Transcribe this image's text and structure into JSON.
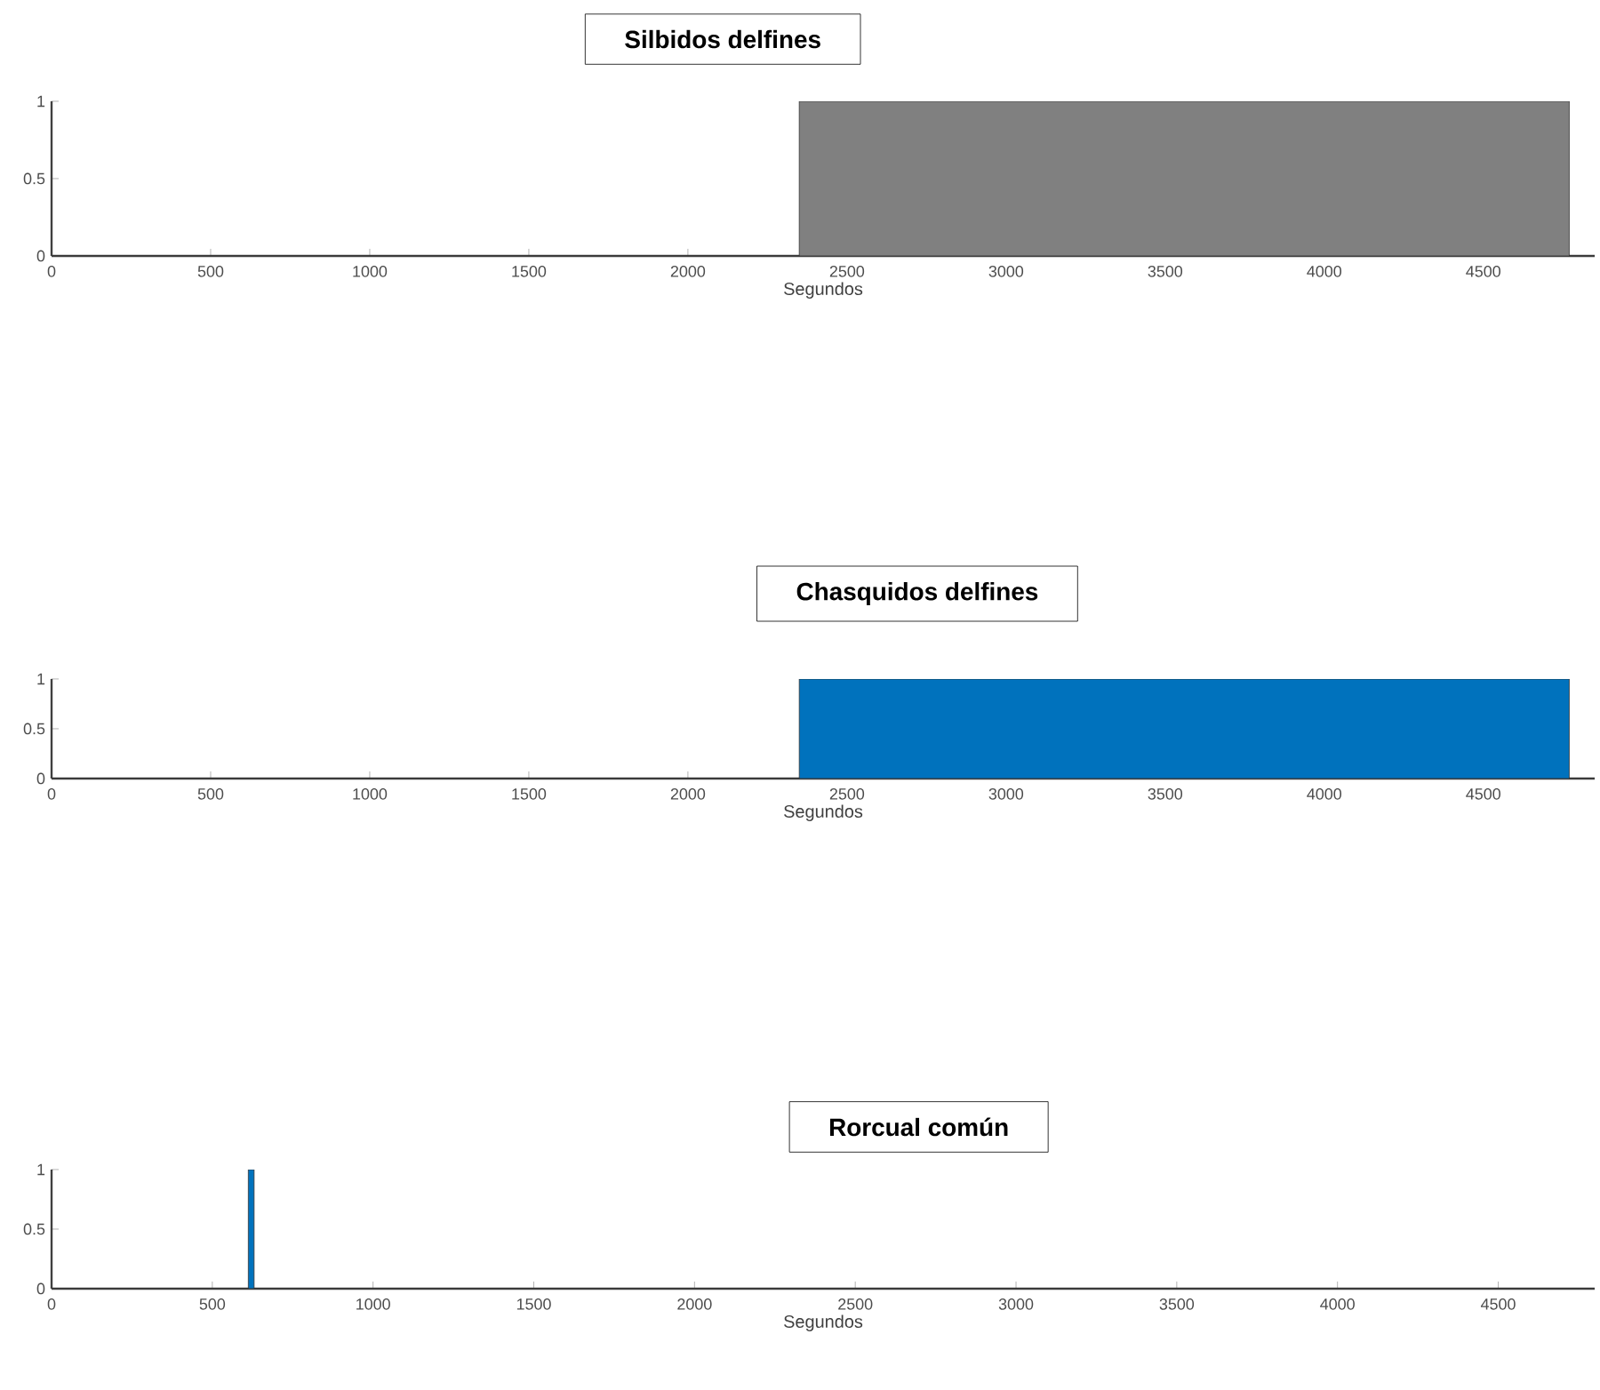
{
  "chart_data": [
    {
      "type": "area",
      "title": "Silbidos delfines",
      "xlabel": "Segundos",
      "x": [
        0,
        2350,
        2350,
        4770,
        4770,
        4850
      ],
      "values": [
        0,
        0,
        1,
        1,
        0,
        0
      ],
      "color": "#808080",
      "xlim": [
        0,
        4850
      ],
      "ylim": [
        0,
        1
      ],
      "xticks": [
        0,
        500,
        1000,
        1500,
        2000,
        2500,
        3000,
        3500,
        4000,
        4500
      ],
      "yticks": [
        0,
        0.5,
        1
      ]
    },
    {
      "type": "area",
      "title": "Chasquidos delfines",
      "xlabel": "Segundos",
      "x": [
        0,
        2350,
        2350,
        4770,
        4770,
        4850
      ],
      "values": [
        0,
        0,
        1,
        1,
        0,
        0
      ],
      "color": "#0072bd",
      "xlim": [
        0,
        4850
      ],
      "ylim": [
        0,
        1
      ],
      "xticks": [
        0,
        500,
        1000,
        1500,
        2000,
        2500,
        3000,
        3500,
        4000,
        4500
      ],
      "yticks": [
        0,
        0.5,
        1
      ]
    },
    {
      "type": "area",
      "title": "Rorcual común",
      "xlabel": "Segundos",
      "x": [
        0,
        612,
        612,
        630,
        630,
        4800
      ],
      "values": [
        0,
        0,
        1,
        1,
        0,
        0
      ],
      "color": "#0072bd",
      "xlim": [
        0,
        4800
      ],
      "ylim": [
        0,
        1
      ],
      "xticks": [
        0,
        500,
        1000,
        1500,
        2000,
        2500,
        3000,
        3500,
        4000,
        4500
      ],
      "yticks": [
        0,
        0.5,
        1
      ]
    }
  ]
}
